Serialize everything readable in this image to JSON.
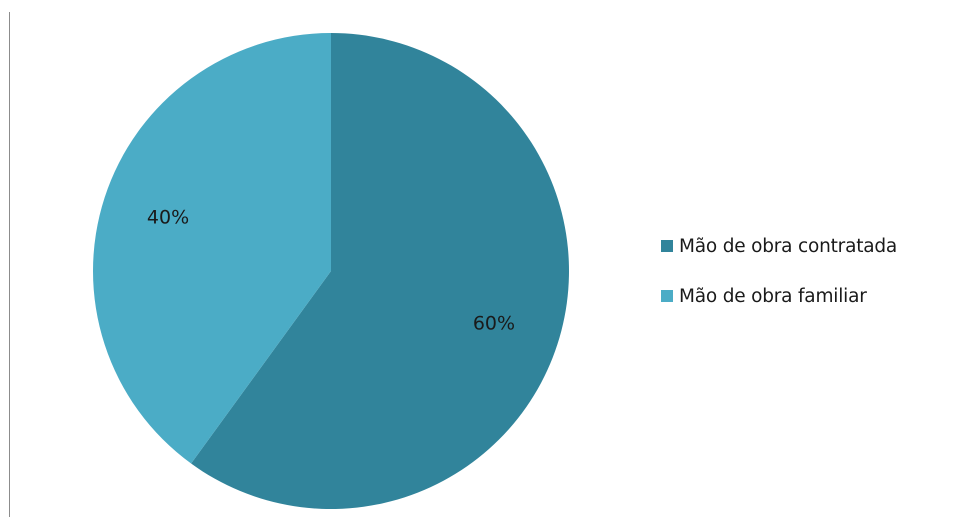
{
  "chart_data": {
    "type": "pie",
    "title": "",
    "slices": [
      {
        "name": "Mão de obra contratada",
        "value": 60,
        "label": "60%",
        "color": "#31849b"
      },
      {
        "name": "Mão de obra familiar",
        "value": 40,
        "label": "40%",
        "color": "#4bacc6"
      }
    ],
    "start_angle": "12 o'clock",
    "direction": "clockwise",
    "legend": {
      "placement": "right",
      "entries": [
        "Mão de obra contratada",
        "Mão de obra familiar"
      ]
    }
  }
}
